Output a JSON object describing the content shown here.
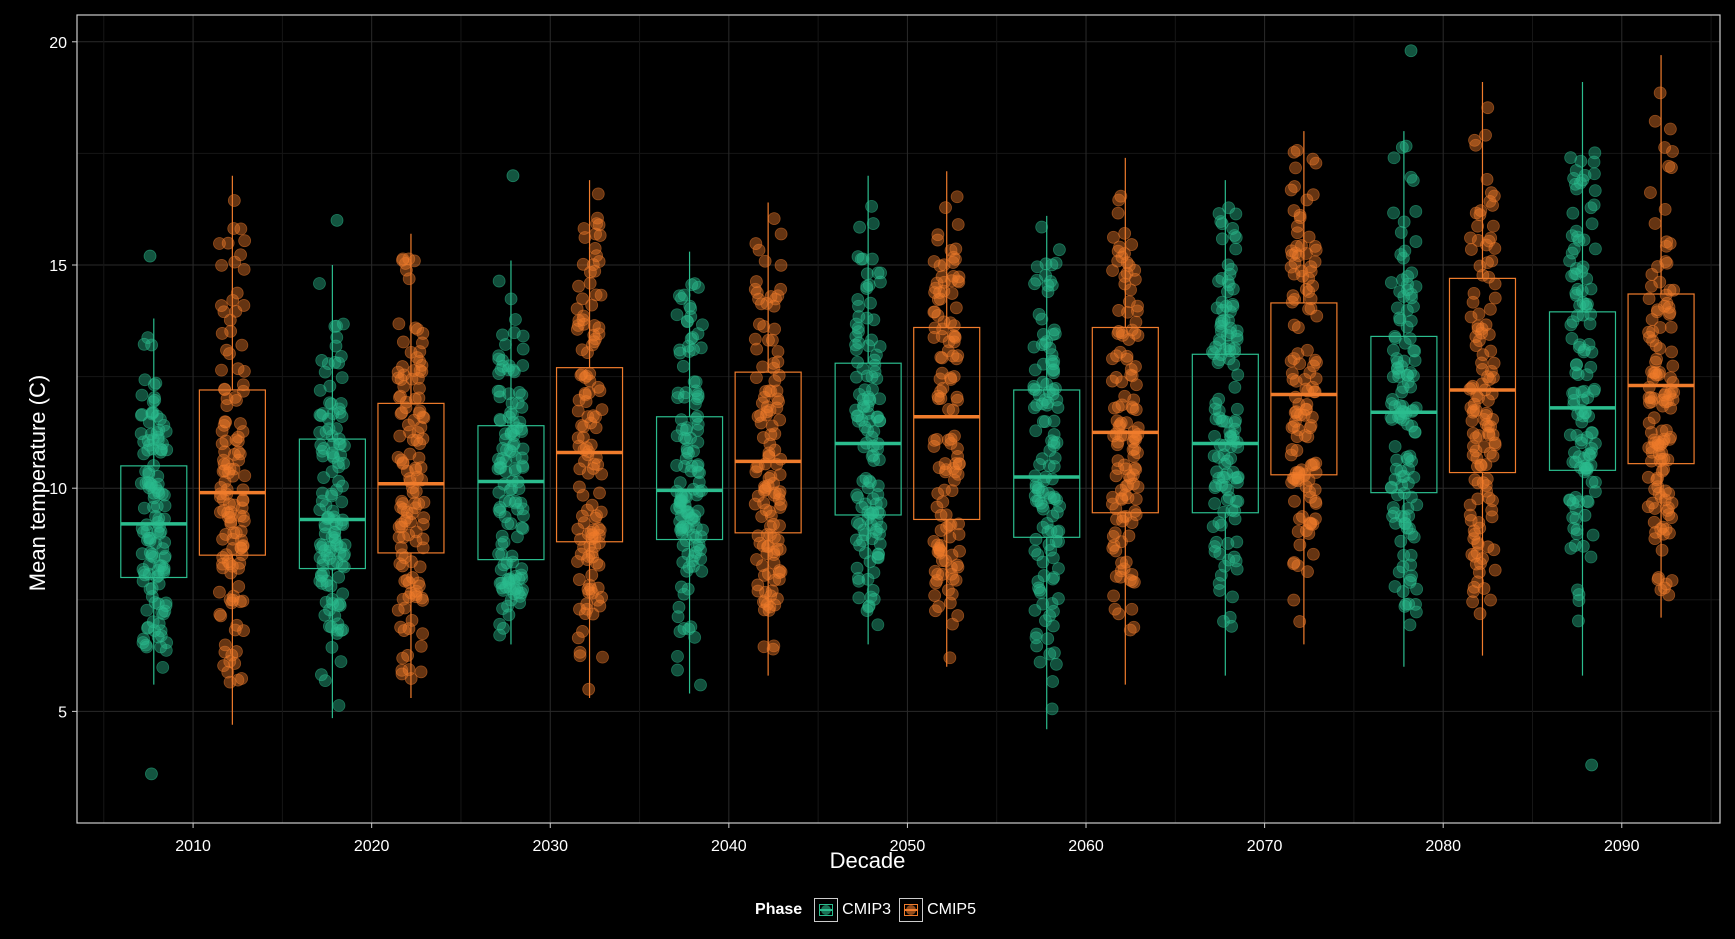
{
  "chart_data": {
    "type": "boxplot",
    "xlabel": "Decade",
    "ylabel": "Mean temperature (C)",
    "ylim": [
      2.5,
      20.6
    ],
    "yticks": [
      5,
      10,
      15,
      20
    ],
    "xticks": [
      2010,
      2020,
      2030,
      2040,
      2050,
      2060,
      2070,
      2080,
      2090
    ],
    "xlim": [
      2003.5,
      2095.5
    ],
    "grid": true,
    "legend": {
      "title": "Phase",
      "position": "bottom",
      "entries": [
        "CMIP3",
        "CMIP5"
      ]
    },
    "colors": {
      "CMIP3": "#2bbd8e",
      "CMIP5": "#f07c2c",
      "background": "#000000",
      "panel_border": "#cccccc"
    },
    "series": [
      {
        "name": "CMIP3",
        "x_offset": -2.2,
        "boxes": [
          {
            "decade": 2010,
            "min": 5.6,
            "q1": 8.0,
            "median": 9.2,
            "q3": 10.5,
            "max": 13.8,
            "outliers": [
              15.2,
              3.6
            ]
          },
          {
            "decade": 2020,
            "min": 4.85,
            "q1": 8.2,
            "median": 9.3,
            "q3": 11.1,
            "max": 15.0,
            "outliers": [
              16.0
            ]
          },
          {
            "decade": 2030,
            "min": 6.5,
            "q1": 8.4,
            "median": 10.15,
            "q3": 11.4,
            "max": 15.1,
            "outliers": [
              17.0
            ]
          },
          {
            "decade": 2040,
            "min": 5.4,
            "q1": 8.85,
            "median": 9.95,
            "q3": 11.6,
            "max": 15.3,
            "outliers": []
          },
          {
            "decade": 2050,
            "min": 6.5,
            "q1": 9.4,
            "median": 11.0,
            "q3": 12.8,
            "max": 17.0,
            "outliers": []
          },
          {
            "decade": 2060,
            "min": 4.6,
            "q1": 8.9,
            "median": 10.25,
            "q3": 12.2,
            "max": 16.1,
            "outliers": []
          },
          {
            "decade": 2070,
            "min": 5.8,
            "q1": 9.45,
            "median": 11.0,
            "q3": 13.0,
            "max": 16.9,
            "outliers": []
          },
          {
            "decade": 2080,
            "min": 6.0,
            "q1": 9.9,
            "median": 11.7,
            "q3": 13.4,
            "max": 18.0,
            "outliers": [
              19.8
            ]
          },
          {
            "decade": 2090,
            "min": 5.8,
            "q1": 10.4,
            "median": 11.8,
            "q3": 13.95,
            "max": 19.1,
            "outliers": [
              3.8
            ]
          }
        ]
      },
      {
        "name": "CMIP5",
        "x_offset": 2.2,
        "boxes": [
          {
            "decade": 2010,
            "min": 4.7,
            "q1": 8.5,
            "median": 9.9,
            "q3": 12.2,
            "max": 17.0,
            "outliers": []
          },
          {
            "decade": 2020,
            "min": 5.3,
            "q1": 8.55,
            "median": 10.1,
            "q3": 11.9,
            "max": 15.7,
            "outliers": []
          },
          {
            "decade": 2030,
            "min": 5.3,
            "q1": 8.8,
            "median": 10.8,
            "q3": 12.7,
            "max": 16.9,
            "outliers": []
          },
          {
            "decade": 2040,
            "min": 5.8,
            "q1": 9.0,
            "median": 10.6,
            "q3": 12.6,
            "max": 16.4,
            "outliers": []
          },
          {
            "decade": 2050,
            "min": 6.0,
            "q1": 9.3,
            "median": 11.6,
            "q3": 13.6,
            "max": 17.1,
            "outliers": []
          },
          {
            "decade": 2060,
            "min": 5.6,
            "q1": 9.45,
            "median": 11.25,
            "q3": 13.6,
            "max": 17.4,
            "outliers": []
          },
          {
            "decade": 2070,
            "min": 6.5,
            "q1": 10.3,
            "median": 12.1,
            "q3": 14.15,
            "max": 18.0,
            "outliers": []
          },
          {
            "decade": 2080,
            "min": 6.25,
            "q1": 10.35,
            "median": 12.2,
            "q3": 14.7,
            "max": 19.1,
            "outliers": []
          },
          {
            "decade": 2090,
            "min": 7.1,
            "q1": 10.55,
            "median": 12.3,
            "q3": 14.35,
            "max": 19.7,
            "outliers": []
          }
        ]
      }
    ]
  }
}
